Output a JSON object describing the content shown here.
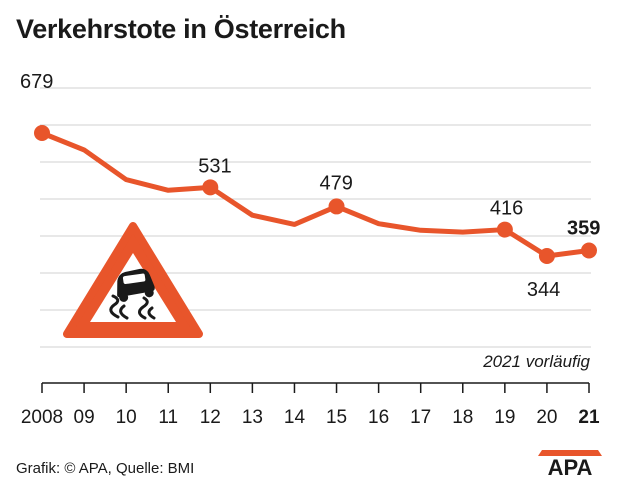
{
  "title": "Verkehrstote in Österreich",
  "note": "2021 vorläufig",
  "source": "Grafik: © APA, Quelle: BMI",
  "logo_text": "APA",
  "icon": "slippery-road-warning-sign-icon",
  "colors": {
    "line": "#e8552b",
    "grid": "#d0d0d0",
    "text": "#1a1a1a",
    "warning_sign": "#e8552b"
  },
  "chart_data": {
    "type": "line",
    "title": "Verkehrstote in Österreich",
    "xlabel": "",
    "ylabel": "",
    "categories": [
      "2008",
      "09",
      "10",
      "11",
      "12",
      "13",
      "14",
      "15",
      "16",
      "17",
      "18",
      "19",
      "20",
      "21"
    ],
    "values": [
      679,
      633,
      552,
      523,
      531,
      455,
      430,
      479,
      432,
      414,
      409,
      416,
      344,
      359
    ],
    "labeled_points": [
      {
        "x": "2008",
        "y": 679,
        "label": "679",
        "bold": false
      },
      {
        "x": "12",
        "y": 531,
        "label": "531",
        "bold": false
      },
      {
        "x": "15",
        "y": 479,
        "label": "479",
        "bold": false
      },
      {
        "x": "19",
        "y": 416,
        "label": "416",
        "bold": false
      },
      {
        "x": "20",
        "y": 344,
        "label": "344",
        "bold": false
      },
      {
        "x": "21",
        "y": 359,
        "label": "359",
        "bold": true
      }
    ],
    "grid": true,
    "legend": "none"
  }
}
